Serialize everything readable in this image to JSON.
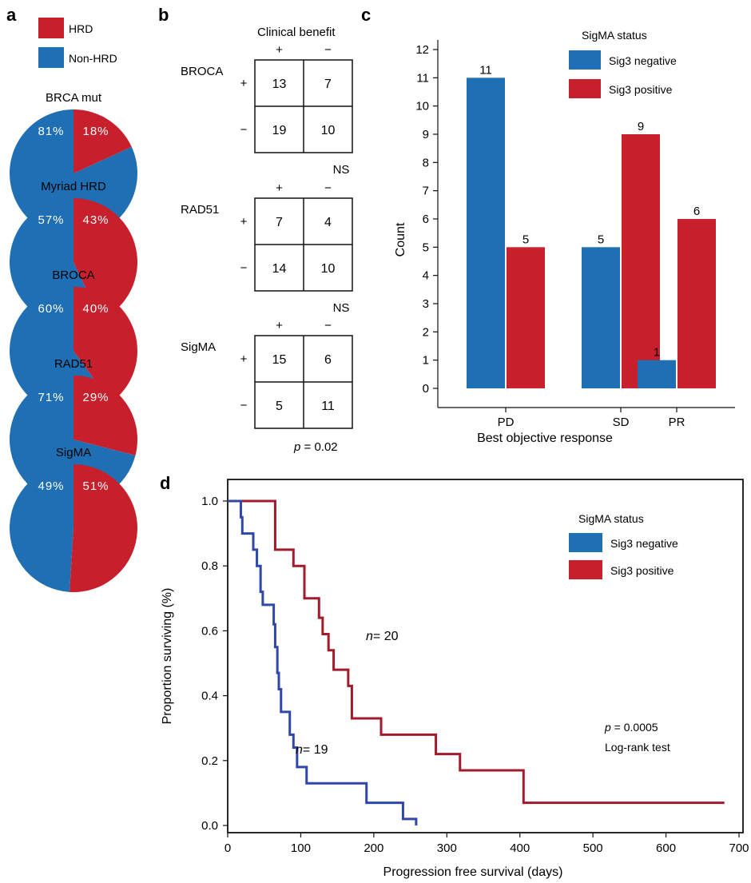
{
  "colors": {
    "hrd": "#c81f2c",
    "nonhrd": "#1f6fb4",
    "neg_line": "#2f47a8",
    "pos_line": "#a31a2c"
  },
  "panels": {
    "a": "a",
    "b": "b",
    "c": "c",
    "d": "d"
  },
  "chart_data": [
    {
      "type": "pie",
      "panel": "a",
      "legend": [
        "HRD",
        "Non-HRD"
      ],
      "pies": [
        {
          "title": "BRCA mut",
          "hrd": 18,
          "nonhrd": 81,
          "hrd_label": "18%",
          "nonhrd_label": "81%"
        },
        {
          "title": "Myriad HRD",
          "hrd": 43,
          "nonhrd": 57,
          "hrd_label": "43%",
          "nonhrd_label": "57%"
        },
        {
          "title": "BROCA",
          "hrd": 40,
          "nonhrd": 60,
          "hrd_label": "40%",
          "nonhrd_label": "60%"
        },
        {
          "title": "RAD51",
          "hrd": 29,
          "nonhrd": 71,
          "hrd_label": "29%",
          "nonhrd_label": "71%"
        },
        {
          "title": "SigMA",
          "hrd": 51,
          "nonhrd": 49,
          "hrd_label": "51%",
          "nonhrd_label": "49%"
        }
      ]
    },
    {
      "type": "table",
      "panel": "b",
      "header": "Clinical benefit",
      "plus": "+",
      "minus": "−",
      "tables": [
        {
          "name": "BROCA",
          "cells": [
            [
              13,
              7
            ],
            [
              19,
              10
            ]
          ],
          "stat": "NS"
        },
        {
          "name": "RAD51",
          "cells": [
            [
              7,
              4
            ],
            [
              14,
              10
            ]
          ],
          "stat": "NS"
        },
        {
          "name": "SigMA",
          "cells": [
            [
              15,
              6
            ],
            [
              5,
              11
            ]
          ],
          "stat_p": "p",
          "stat_val": " = 0.02"
        }
      ]
    },
    {
      "type": "bar",
      "panel": "c",
      "categories": [
        "PD",
        "SD",
        "PR"
      ],
      "series": [
        {
          "name": "Sig3 negative",
          "values": [
            11,
            5,
            1
          ]
        },
        {
          "name": "Sig3 positive",
          "values": [
            5,
            9,
            6
          ]
        }
      ],
      "xlabel": "Best objective response",
      "ylabel": "Count",
      "ylim": [
        0,
        12
      ],
      "legend_title": "SigMA status",
      "legend_position": "top-right"
    },
    {
      "type": "line",
      "panel": "d",
      "xlabel": "Progression free survival (days)",
      "ylabel": "Proportion surviving (%)",
      "xlim": [
        0,
        700
      ],
      "ylim": [
        0,
        1
      ],
      "xticks": [
        0,
        100,
        200,
        300,
        400,
        500,
        600,
        700
      ],
      "yticks": [
        "0.0",
        "0.2",
        "0.4",
        "0.6",
        "0.8",
        "1.0"
      ],
      "legend_title": "SigMA status",
      "legend_position": "top-right",
      "series": [
        {
          "name": "Sig3 negative",
          "n_label": "= 19",
          "steps": [
            [
              0,
              1.0
            ],
            [
              18,
              0.95
            ],
            [
              20,
              0.9
            ],
            [
              35,
              0.85
            ],
            [
              40,
              0.8
            ],
            [
              45,
              0.72
            ],
            [
              48,
              0.68
            ],
            [
              63,
              0.62
            ],
            [
              65,
              0.55
            ],
            [
              68,
              0.47
            ],
            [
              70,
              0.42
            ],
            [
              73,
              0.35
            ],
            [
              85,
              0.28
            ],
            [
              90,
              0.24
            ],
            [
              95,
              0.18
            ],
            [
              108,
              0.13
            ],
            [
              190,
              0.07
            ],
            [
              240,
              0.02
            ],
            [
              258,
              0.0
            ]
          ]
        },
        {
          "name": "Sig3 positive",
          "n_label": "= 20",
          "steps": [
            [
              0,
              1.0
            ],
            [
              65,
              0.85
            ],
            [
              90,
              0.8
            ],
            [
              105,
              0.7
            ],
            [
              125,
              0.64
            ],
            [
              130,
              0.59
            ],
            [
              138,
              0.54
            ],
            [
              145,
              0.48
            ],
            [
              165,
              0.43
            ],
            [
              170,
              0.33
            ],
            [
              210,
              0.28
            ],
            [
              285,
              0.22
            ],
            [
              318,
              0.17
            ],
            [
              405,
              0.07
            ],
            [
              680,
              0.07
            ]
          ]
        }
      ],
      "annotation_p": "p",
      "annotation_p_val": " = 0.0005",
      "annotation_test": "Log-rank test"
    }
  ]
}
